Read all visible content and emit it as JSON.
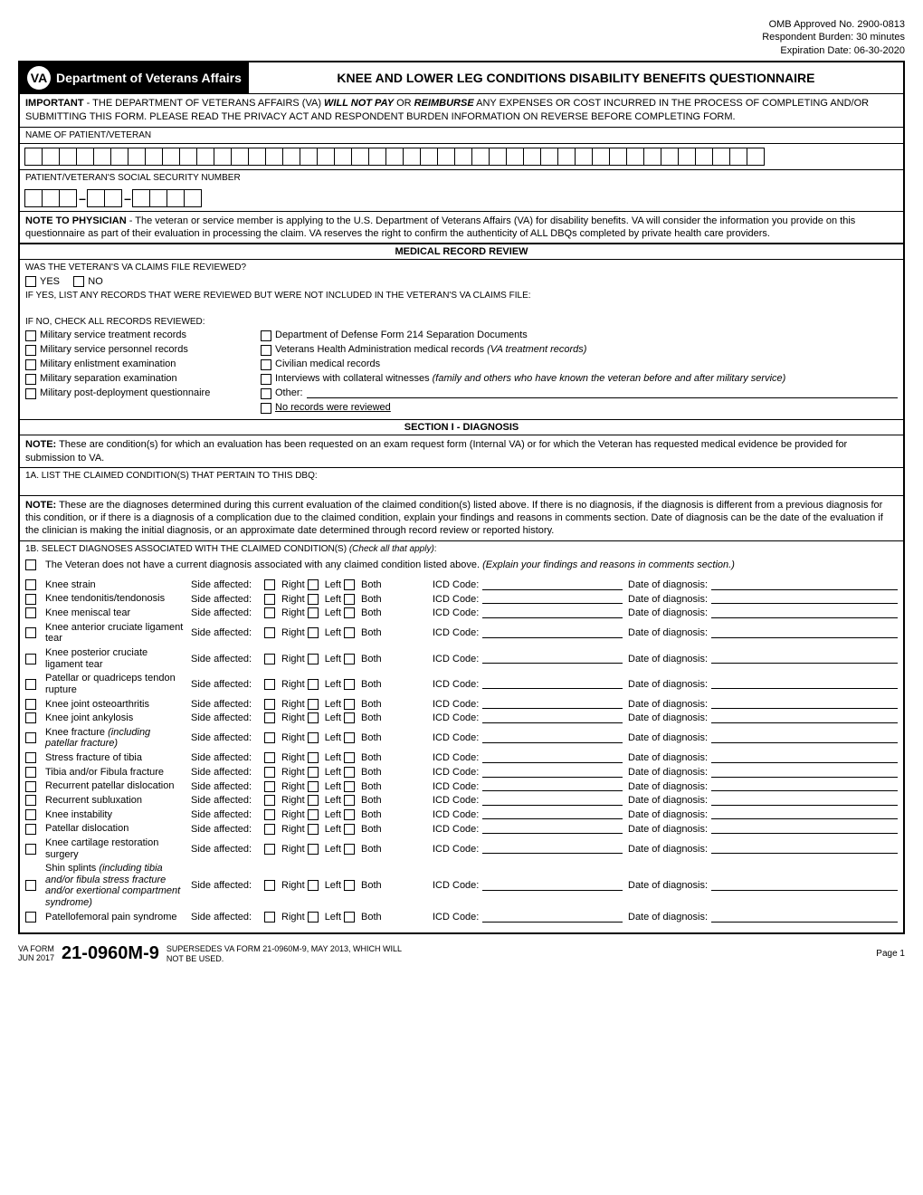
{
  "meta": {
    "omb": "OMB Approved No. 2900-0813",
    "burden": "Respondent Burden: 30 minutes",
    "expiration": "Expiration Date: 06-30-2020"
  },
  "header": {
    "dept": "Department of Veterans Affairs",
    "logo": "VA",
    "title": "KNEE AND LOWER LEG CONDITIONS DISABILITY BENEFITS QUESTIONNAIRE"
  },
  "important": {
    "prefix": "IMPORTANT",
    "text1": " - THE DEPARTMENT OF VETERANS AFFAIRS (VA) ",
    "bold1": "WILL NOT PAY",
    "text2": " OR ",
    "bold2": "REIMBURSE",
    "text3": " ANY EXPENSES OR COST INCURRED IN THE PROCESS OF COMPLETING AND/OR SUBMITTING THIS FORM. PLEASE READ THE PRIVACY ACT AND RESPONDENT BURDEN INFORMATION ON REVERSE BEFORE COMPLETING FORM."
  },
  "patient": {
    "name_label": "NAME OF PATIENT/VETERAN",
    "ssn_label": "PATIENT/VETERAN'S SOCIAL SECURITY NUMBER"
  },
  "physician_note": {
    "prefix": "NOTE TO PHYSICIAN",
    "text": " -  The veteran or service member is applying to the U.S. Department of Veterans Affairs (VA) for disability benefits. VA will consider the information you provide on this questionnaire as part of their evaluation in processing the claim. VA reserves the right to confirm the authenticity of ALL DBQs completed by private health care providers."
  },
  "mrr": {
    "header": "MEDICAL RECORD REVIEW",
    "q1": "WAS THE VETERAN'S VA CLAIMS FILE REVIEWED?",
    "yes": "YES",
    "no": "NO",
    "if_yes": "IF YES, LIST ANY RECORDS THAT WERE REVIEWED BUT WERE NOT INCLUDED IN THE VETERAN'S VA CLAIMS FILE:",
    "if_no": "IF NO, CHECK ALL RECORDS REVIEWED:",
    "left": [
      "Military service treatment records",
      "Military service personnel records",
      "Military enlistment examination",
      "Military separation examination",
      "Military post-deployment questionnaire"
    ],
    "right": [
      {
        "text": "Department of Defense Form 214 Separation Documents"
      },
      {
        "text": "Veterans Health Administration medical records ",
        "italic": "(VA treatment records)"
      },
      {
        "text": "Civilian medical records"
      },
      {
        "text": "Interviews with collateral witnesses ",
        "italic": "(family and others who have known the veteran before and after military service)"
      },
      {
        "text": "Other:",
        "other": true
      },
      {
        "text": "No records were reviewed",
        "underline": true
      }
    ]
  },
  "section1": {
    "header": "SECTION I - DIAGNOSIS",
    "note1_prefix": "NOTE:",
    "note1": " These are condition(s) for which an evaluation has been requested on an exam request form (Internal VA) or for which the Veteran has requested medical evidence be provided for submission to VA.",
    "q1a": "1A. LIST THE CLAIMED CONDITION(S) THAT PERTAIN TO THIS DBQ:",
    "note2_prefix": "NOTE:",
    "note2": " These are the diagnoses determined during this current evaluation of the claimed condition(s) listed above. If there is no diagnosis, if the diagnosis is different from a previous diagnosis for this condition, or if there is a diagnosis of a complication due to the claimed condition, explain your findings and reasons in comments section. Date of diagnosis can be the date of the evaluation if the clinician is making the initial diagnosis, or an approximate date determined through record review or reported history.",
    "q1b": "1B. SELECT DIAGNOSES ASSOCIATED WITH THE CLAIMED CONDITION(S) ",
    "q1b_italic": "(Check all that apply)",
    "no_current": "The Veteran does not have a current diagnosis associated with any claimed condition listed above. ",
    "no_current_italic": "(Explain your findings and reasons in comments section.)",
    "side_label": "Side affected:",
    "right": "Right",
    "left": "Left",
    "both": "Both",
    "icd": "ICD Code:",
    "dod": "Date of diagnosis:",
    "diagnoses": [
      {
        "name": "Knee strain"
      },
      {
        "name": "Knee tendonitis/tendonosis"
      },
      {
        "name": "Knee meniscal tear"
      },
      {
        "name": "Knee anterior cruciate ligament tear"
      },
      {
        "name": "Knee posterior cruciate ligament tear"
      },
      {
        "name": "Patellar or quadriceps tendon rupture"
      },
      {
        "name": "Knee joint osteoarthritis"
      },
      {
        "name": "Knee joint ankylosis"
      },
      {
        "name": "Knee fracture ",
        "italic": "(including patellar fracture)"
      },
      {
        "name": "Stress fracture of tibia"
      },
      {
        "name": "Tibia and/or Fibula fracture"
      },
      {
        "name": "Recurrent patellar dislocation"
      },
      {
        "name": "Recurrent subluxation"
      },
      {
        "name": "Knee instability"
      },
      {
        "name": "Patellar dislocation"
      },
      {
        "name": "Knee cartilage restoration surgery"
      },
      {
        "name": "Shin splints ",
        "italic": "(including tibia and/or fibula stress fracture and/or exertional compartment syndrome)"
      },
      {
        "name": "Patellofemoral pain syndrome"
      }
    ]
  },
  "footer": {
    "va_form": "VA FORM",
    "date": "JUN 2017",
    "number": "21-0960M-9",
    "supersedes": "SUPERSEDES VA FORM 21-0960M-9, MAY 2013, WHICH WILL NOT BE USED.",
    "page": "Page 1"
  }
}
